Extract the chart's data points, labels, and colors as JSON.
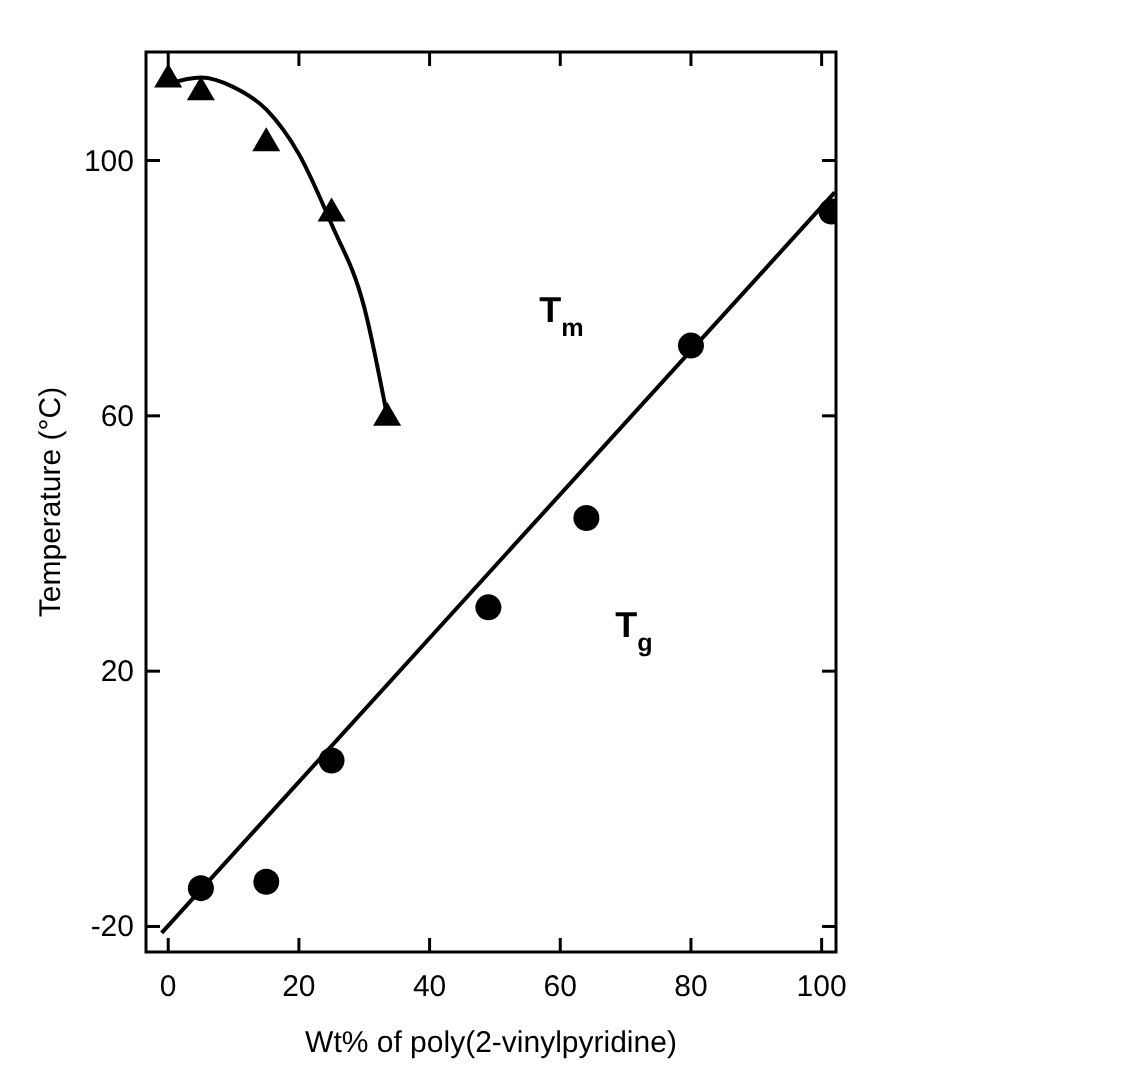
{
  "chart_data": {
    "type": "scatter",
    "xlabel": "Wt% of poly(2-vinylpyridine)",
    "ylabel": "Temperature (°C)",
    "xlim": [
      -3.4,
      102.2
    ],
    "ylim": [
      -24,
      117
    ],
    "xticks": [
      0,
      20,
      40,
      60,
      80,
      100
    ],
    "yticks": [
      -20,
      20,
      60,
      100
    ],
    "grid": false,
    "series": [
      {
        "marker": "triangle",
        "color": "#000000",
        "x": [
          0,
          5,
          15,
          25,
          33.5
        ],
        "values": [
          113,
          111,
          103,
          92,
          60
        ]
      },
      {
        "marker": "circle",
        "color": "#000000",
        "x": [
          5,
          15,
          25,
          49,
          64,
          80,
          101.5
        ],
        "values": [
          -14,
          -13,
          6,
          30,
          44,
          71,
          92
        ]
      },
      {
        "type": "line",
        "marker": "none",
        "color": "#000000",
        "x": [
          0,
          5,
          10,
          15,
          20,
          25,
          30,
          33.5
        ],
        "values": [
          112,
          113,
          111.5,
          108,
          101,
          90,
          77,
          60
        ]
      },
      {
        "type": "line",
        "marker": "none",
        "color": "#000000",
        "x": [
          -1,
          102
        ],
        "values": [
          -21,
          95
        ]
      }
    ],
    "annotations": [
      "T$_{m}$",
      "T$_{g}$"
    ]
  }
}
